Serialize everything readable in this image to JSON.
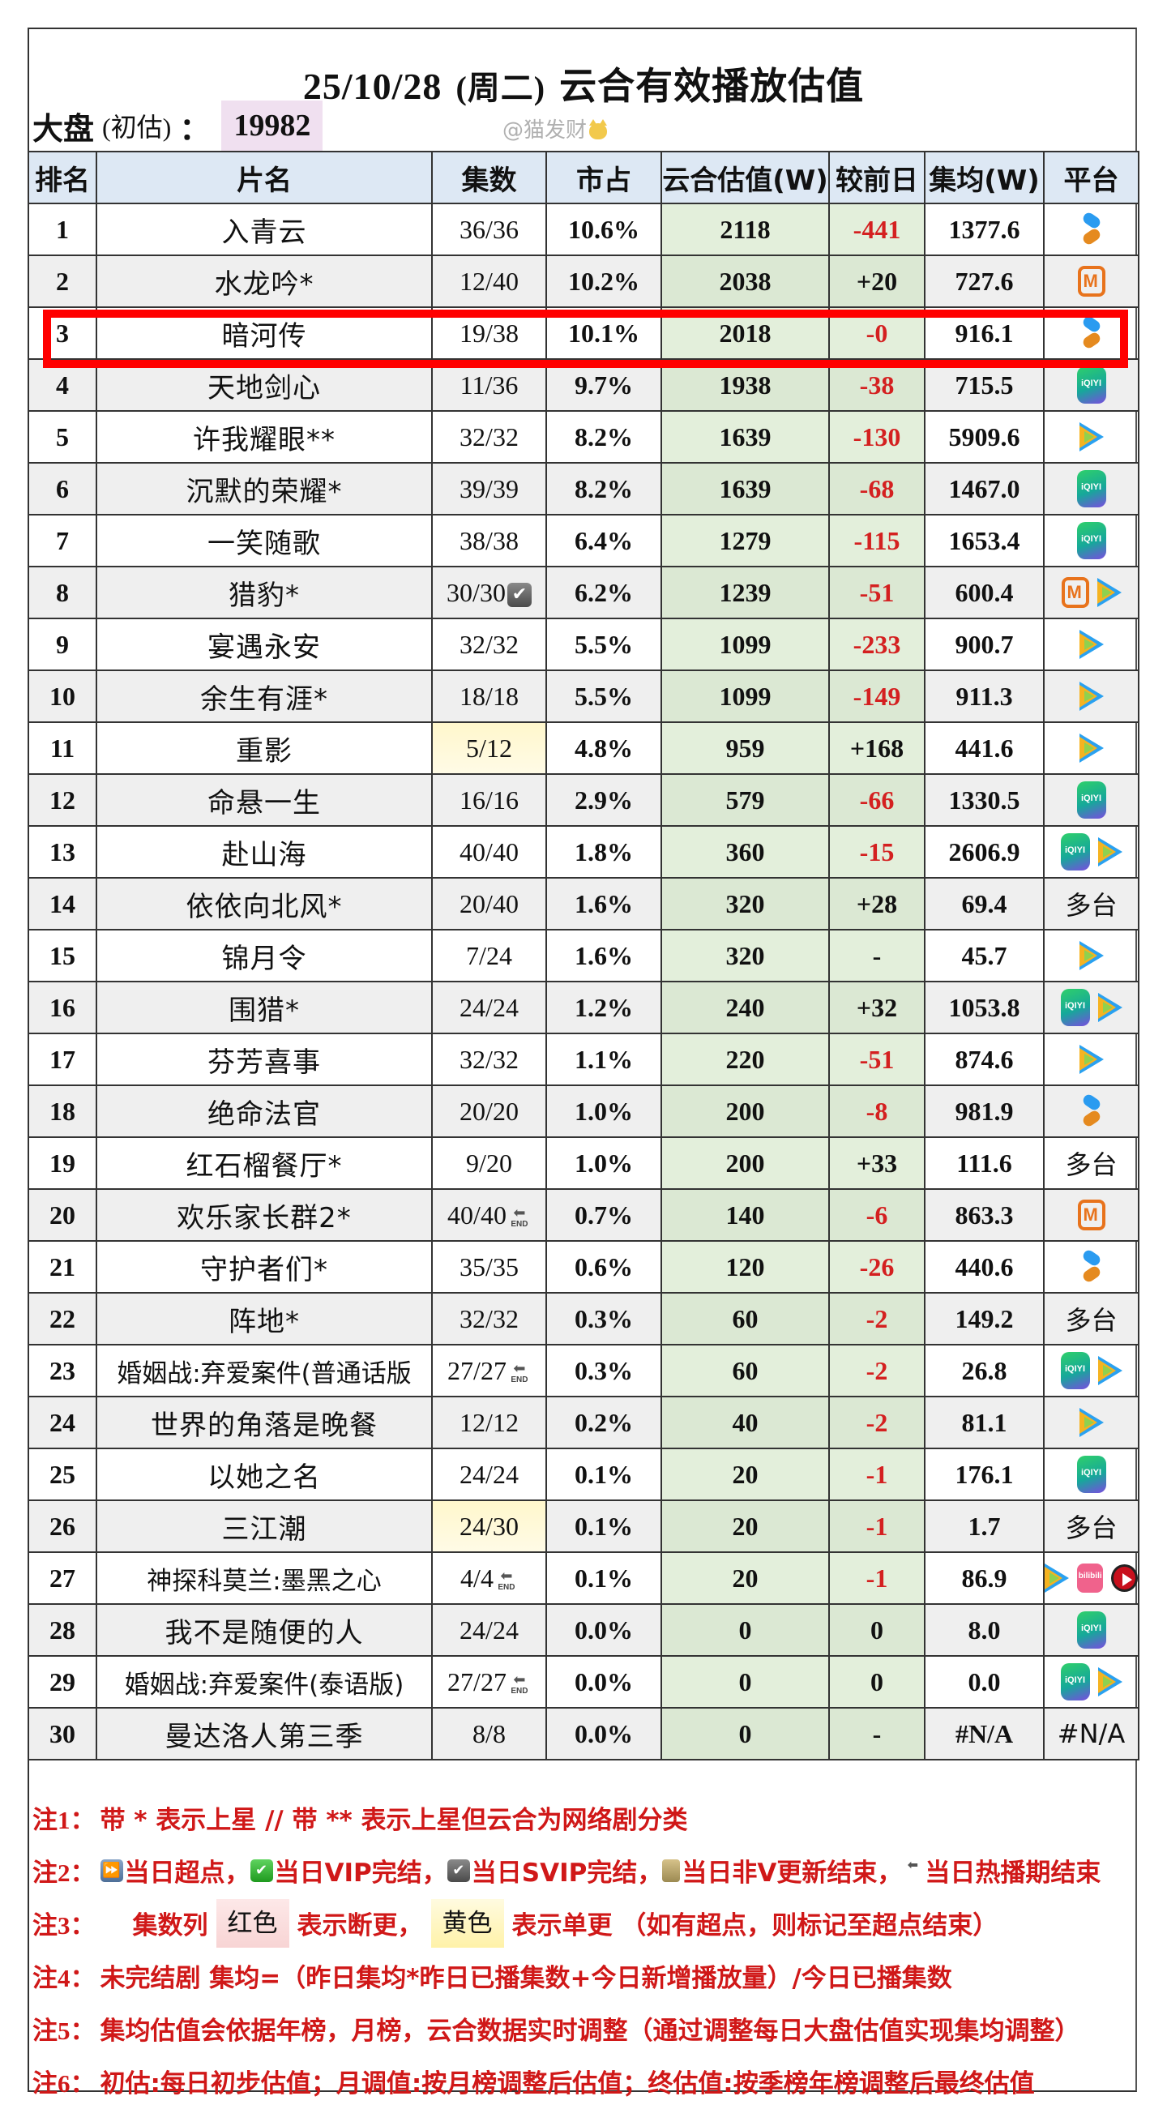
{
  "title": {
    "date": "25/10/28",
    "weekday": "(周二)",
    "text": "云合有效播放估值"
  },
  "market": {
    "label": "大盘",
    "paren": "(初估)",
    "colon": "：",
    "value": "19982"
  },
  "watermark": "@猫发财",
  "colors": {
    "header_bg": "#dde8f4",
    "green_col_bg": "#e3efdb",
    "negative_text": "#d42020",
    "highlight_border": "#ff0000",
    "note_text": "#d01818",
    "market_value_bg": "#f0e0f0"
  },
  "table": {
    "headers": [
      "排名",
      "片名",
      "集数",
      "市占",
      "云合估值(W)",
      "较前日",
      "集均(W)",
      "平台"
    ],
    "highlighted_rank": 3,
    "rows": [
      {
        "rank": "1",
        "name": "入青云",
        "eps": "36/36",
        "eps_badge": "",
        "eps_bg": "",
        "share": "10.6%",
        "yunhe": "2118",
        "delta": "-441",
        "delta_neg": true,
        "avg": "1377.6",
        "platforms": [
          "youku"
        ],
        "platform_text": ""
      },
      {
        "rank": "2",
        "name": "水龙吟*",
        "eps": "12/40",
        "eps_badge": "",
        "eps_bg": "",
        "share": "10.2%",
        "yunhe": "2038",
        "delta": "+20",
        "delta_neg": false,
        "avg": "727.6",
        "platforms": [
          "mango"
        ],
        "platform_text": ""
      },
      {
        "rank": "3",
        "name": "暗河传",
        "eps": "19/38",
        "eps_badge": "",
        "eps_bg": "",
        "share": "10.1%",
        "yunhe": "2018",
        "delta": "-0",
        "delta_neg": true,
        "avg": "916.1",
        "platforms": [
          "youku"
        ],
        "platform_text": ""
      },
      {
        "rank": "4",
        "name": "天地剑心",
        "eps": "11/36",
        "eps_badge": "",
        "eps_bg": "",
        "share": "9.7%",
        "yunhe": "1938",
        "delta": "-38",
        "delta_neg": true,
        "avg": "715.5",
        "platforms": [
          "iqiyi"
        ],
        "platform_text": ""
      },
      {
        "rank": "5",
        "name": "许我耀眼**",
        "eps": "32/32",
        "eps_badge": "",
        "eps_bg": "",
        "share": "8.2%",
        "yunhe": "1639",
        "delta": "-130",
        "delta_neg": true,
        "avg": "5909.6",
        "platforms": [
          "tencent"
        ],
        "platform_text": ""
      },
      {
        "rank": "6",
        "name": "沉默的荣耀*",
        "eps": "39/39",
        "eps_badge": "",
        "eps_bg": "",
        "share": "8.2%",
        "yunhe": "1639",
        "delta": "-68",
        "delta_neg": true,
        "avg": "1467.0",
        "platforms": [
          "iqiyi"
        ],
        "platform_text": ""
      },
      {
        "rank": "7",
        "name": "一笑随歌",
        "eps": "38/38",
        "eps_badge": "",
        "eps_bg": "",
        "share": "6.4%",
        "yunhe": "1279",
        "delta": "-115",
        "delta_neg": true,
        "avg": "1653.4",
        "platforms": [
          "iqiyi"
        ],
        "platform_text": ""
      },
      {
        "rank": "8",
        "name": "猎豹*",
        "eps": "30/30",
        "eps_badge": "svip-check",
        "eps_bg": "",
        "share": "6.2%",
        "yunhe": "1239",
        "delta": "-51",
        "delta_neg": true,
        "avg": "600.4",
        "platforms": [
          "mango",
          "tencent"
        ],
        "platform_text": ""
      },
      {
        "rank": "9",
        "name": "宴遇永安",
        "eps": "32/32",
        "eps_badge": "",
        "eps_bg": "",
        "share": "5.5%",
        "yunhe": "1099",
        "delta": "-233",
        "delta_neg": true,
        "avg": "900.7",
        "platforms": [
          "tencent"
        ],
        "platform_text": ""
      },
      {
        "rank": "10",
        "name": "余生有涯*",
        "eps": "18/18",
        "eps_badge": "",
        "eps_bg": "",
        "share": "5.5%",
        "yunhe": "1099",
        "delta": "-149",
        "delta_neg": true,
        "avg": "911.3",
        "platforms": [
          "tencent"
        ],
        "platform_text": ""
      },
      {
        "rank": "11",
        "name": "重影",
        "eps": "5/12",
        "eps_badge": "",
        "eps_bg": "yellow",
        "share": "4.8%",
        "yunhe": "959",
        "delta": "+168",
        "delta_neg": false,
        "avg": "441.6",
        "platforms": [
          "tencent"
        ],
        "platform_text": ""
      },
      {
        "rank": "12",
        "name": "命悬一生",
        "eps": "16/16",
        "eps_badge": "",
        "eps_bg": "",
        "share": "2.9%",
        "yunhe": "579",
        "delta": "-66",
        "delta_neg": true,
        "avg": "1330.5",
        "platforms": [
          "iqiyi"
        ],
        "platform_text": ""
      },
      {
        "rank": "13",
        "name": "赴山海",
        "eps": "40/40",
        "eps_badge": "",
        "eps_bg": "",
        "share": "1.8%",
        "yunhe": "360",
        "delta": "-15",
        "delta_neg": true,
        "avg": "2606.9",
        "platforms": [
          "iqiyi",
          "tencent"
        ],
        "platform_text": ""
      },
      {
        "rank": "14",
        "name": "依依向北风*",
        "eps": "20/40",
        "eps_badge": "",
        "eps_bg": "",
        "share": "1.6%",
        "yunhe": "320",
        "delta": "+28",
        "delta_neg": false,
        "avg": "69.4",
        "platforms": [],
        "platform_text": "多台"
      },
      {
        "rank": "15",
        "name": "锦月令",
        "eps": "7/24",
        "eps_badge": "",
        "eps_bg": "",
        "share": "1.6%",
        "yunhe": "320",
        "delta": "-",
        "delta_neg": false,
        "avg": "45.7",
        "platforms": [
          "tencent"
        ],
        "platform_text": ""
      },
      {
        "rank": "16",
        "name": "围猎*",
        "eps": "24/24",
        "eps_badge": "",
        "eps_bg": "",
        "share": "1.2%",
        "yunhe": "240",
        "delta": "+32",
        "delta_neg": false,
        "avg": "1053.8",
        "platforms": [
          "iqiyi",
          "tencent"
        ],
        "platform_text": ""
      },
      {
        "rank": "17",
        "name": "芬芳喜事",
        "eps": "32/32",
        "eps_badge": "",
        "eps_bg": "",
        "share": "1.1%",
        "yunhe": "220",
        "delta": "-51",
        "delta_neg": true,
        "avg": "874.6",
        "platforms": [
          "tencent"
        ],
        "platform_text": ""
      },
      {
        "rank": "18",
        "name": "绝命法官",
        "eps": "20/20",
        "eps_badge": "",
        "eps_bg": "",
        "share": "1.0%",
        "yunhe": "200",
        "delta": "-8",
        "delta_neg": true,
        "avg": "981.9",
        "platforms": [
          "youku"
        ],
        "platform_text": ""
      },
      {
        "rank": "19",
        "name": "红石榴餐厅*",
        "eps": "9/20",
        "eps_badge": "",
        "eps_bg": "",
        "share": "1.0%",
        "yunhe": "200",
        "delta": "+33",
        "delta_neg": false,
        "avg": "111.6",
        "platforms": [],
        "platform_text": "多台"
      },
      {
        "rank": "20",
        "name": "欢乐家长群2*",
        "eps": "40/40",
        "eps_badge": "end",
        "eps_bg": "",
        "share": "0.7%",
        "yunhe": "140",
        "delta": "-6",
        "delta_neg": true,
        "avg": "863.3",
        "platforms": [
          "mango"
        ],
        "platform_text": ""
      },
      {
        "rank": "21",
        "name": "守护者们*",
        "eps": "35/35",
        "eps_badge": "",
        "eps_bg": "",
        "share": "0.6%",
        "yunhe": "120",
        "delta": "-26",
        "delta_neg": true,
        "avg": "440.6",
        "platforms": [
          "youku"
        ],
        "platform_text": ""
      },
      {
        "rank": "22",
        "name": "阵地*",
        "eps": "32/32",
        "eps_badge": "",
        "eps_bg": "",
        "share": "0.3%",
        "yunhe": "60",
        "delta": "-2",
        "delta_neg": true,
        "avg": "149.2",
        "platforms": [],
        "platform_text": "多台"
      },
      {
        "rank": "23",
        "name": "婚姻战:弃爱案件(普通话版",
        "eps": "27/27",
        "eps_badge": "end",
        "eps_bg": "",
        "share": "0.3%",
        "yunhe": "60",
        "delta": "-2",
        "delta_neg": true,
        "avg": "26.8",
        "platforms": [
          "iqiyi",
          "tencent"
        ],
        "platform_text": ""
      },
      {
        "rank": "24",
        "name": "世界的角落是晚餐",
        "eps": "12/12",
        "eps_badge": "",
        "eps_bg": "",
        "share": "0.2%",
        "yunhe": "40",
        "delta": "-2",
        "delta_neg": true,
        "avg": "81.1",
        "platforms": [
          "tencent"
        ],
        "platform_text": ""
      },
      {
        "rank": "25",
        "name": "以她之名",
        "eps": "24/24",
        "eps_badge": "",
        "eps_bg": "",
        "share": "0.1%",
        "yunhe": "20",
        "delta": "-1",
        "delta_neg": true,
        "avg": "176.1",
        "platforms": [
          "iqiyi"
        ],
        "platform_text": ""
      },
      {
        "rank": "26",
        "name": "三江潮",
        "eps": "24/30",
        "eps_badge": "",
        "eps_bg": "yellow",
        "share": "0.1%",
        "yunhe": "20",
        "delta": "-1",
        "delta_neg": true,
        "avg": "1.7",
        "platforms": [],
        "platform_text": "多台"
      },
      {
        "rank": "27",
        "name": "神探科莫兰:墨黑之心",
        "eps": "4/4",
        "eps_badge": "end",
        "eps_bg": "",
        "share": "0.1%",
        "yunhe": "20",
        "delta": "-1",
        "delta_neg": true,
        "avg": "86.9",
        "platforms": [
          "tencent",
          "bilibili",
          "redplay"
        ],
        "platform_text": ""
      },
      {
        "rank": "28",
        "name": "我不是随便的人",
        "eps": "24/24",
        "eps_badge": "",
        "eps_bg": "",
        "share": "0.0%",
        "yunhe": "0",
        "delta": "0",
        "delta_neg": false,
        "avg": "8.0",
        "platforms": [
          "iqiyi"
        ],
        "platform_text": ""
      },
      {
        "rank": "29",
        "name": "婚姻战:弃爱案件(泰语版)",
        "eps": "27/27",
        "eps_badge": "end",
        "eps_bg": "",
        "share": "0.0%",
        "yunhe": "0",
        "delta": "0",
        "delta_neg": false,
        "avg": "0.0",
        "platforms": [
          "iqiyi",
          "tencent"
        ],
        "platform_text": ""
      },
      {
        "rank": "30",
        "name": "曼达洛人第三季",
        "eps": "8/8",
        "eps_badge": "",
        "eps_bg": "",
        "share": "0.0%",
        "yunhe": "0",
        "delta": "-",
        "delta_neg": false,
        "avg": "#N/A",
        "platforms": [],
        "platform_text": "#N/A"
      }
    ]
  },
  "icons": {
    "youku": "youku-icon",
    "mango": "mango-tv-icon",
    "iqiyi": "iqiyi-icon",
    "tencent": "tencent-video-icon",
    "bilibili": "bilibili-icon",
    "redplay": "red-play-icon",
    "iqiyi_text": "iQIYI",
    "mango_text": "M",
    "bilibili_text": "bilibili",
    "end_text": "END",
    "end_arrow": "⬅",
    "check": "✔"
  },
  "notes": {
    "n1": {
      "label": "注1：",
      "text": "带 * 表示上星 // 带 ** 表示上星但云合为网络剧分类"
    },
    "n2": {
      "label": "注2：",
      "items": [
        "当日超点，",
        "当日VIP完结，",
        "当日SVIP完结，",
        "当日非V更新结束，",
        "当日热播期结束"
      ],
      "icons": [
        "⏩",
        "✔",
        "✔",
        "🔒",
        "⬅"
      ]
    },
    "n3": {
      "label": "注3：",
      "col": "集数列",
      "red": "红色",
      "red_desc": "表示断更，",
      "yellow": "黄色",
      "yellow_desc": "表示单更 （如有超点，则标记至超点结束）"
    },
    "n4": {
      "label": "注4：",
      "text": "未完结剧 集均=（昨日集均*昨日已播集数+今日新增播放量）/今日已播集数"
    },
    "n5": {
      "label": "注5：",
      "text": "集均估值会依据年榜，月榜，云合数据实时调整（通过调整每日大盘估值实现集均调整）"
    },
    "n6": {
      "label": "注6：",
      "text": "初估:每日初步估值；月调值:按月榜调整后估值；终估值:按季榜年榜调整后最终估值"
    }
  }
}
